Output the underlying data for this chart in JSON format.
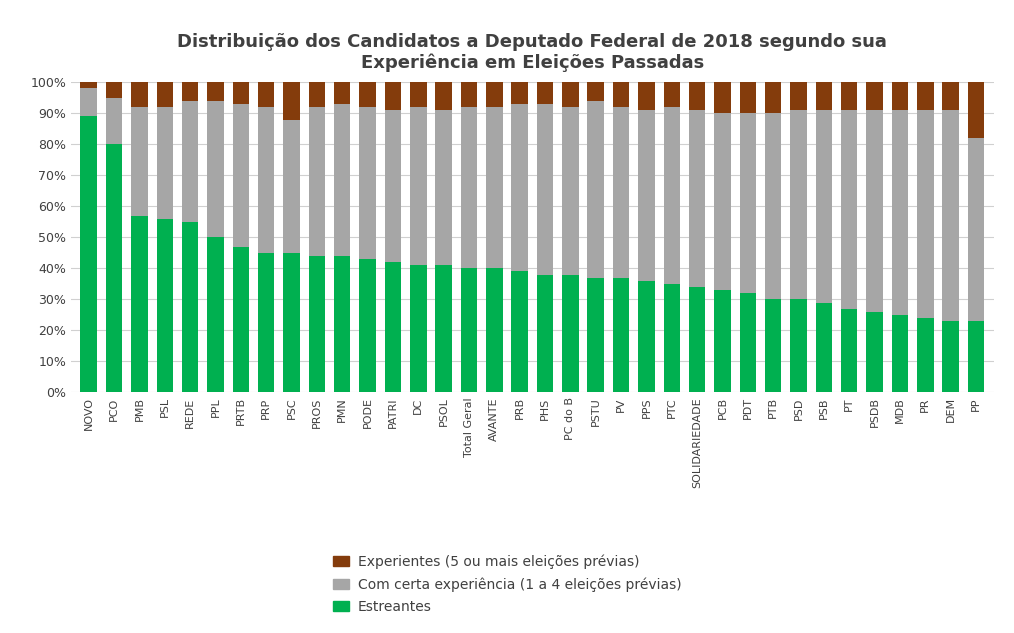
{
  "title": "Distribuição dos Candidatos a Deputado Federal de 2018 segundo sua\nExperiência em Eleições Passadas",
  "title_fontsize": 13,
  "categories": [
    "NOVO",
    "PCO",
    "PMB",
    "PSL",
    "REDE",
    "PPL",
    "PRTB",
    "PRP",
    "PSC",
    "PROS",
    "PMN",
    "PODE",
    "PATRI",
    "DC",
    "PSOL",
    "Total Geral",
    "AVANTE",
    "PRB",
    "PHS",
    "PC do B",
    "PSTU",
    "PV",
    "PPS",
    "PTC",
    "SOLIDARIEDADE",
    "PCB",
    "PDT",
    "PTB",
    "PSD",
    "PSB",
    "PT",
    "PSDB",
    "MDB",
    "PR",
    "DEM",
    "PP"
  ],
  "estreantes": [
    89,
    80,
    57,
    56,
    55,
    50,
    47,
    45,
    45,
    44,
    44,
    43,
    42,
    41,
    41,
    40,
    40,
    39,
    38,
    38,
    37,
    37,
    36,
    35,
    34,
    33,
    32,
    30,
    30,
    29,
    27,
    26,
    25,
    24,
    23,
    23
  ],
  "com_experiencia": [
    9,
    15,
    35,
    36,
    39,
    44,
    46,
    47,
    43,
    48,
    49,
    49,
    49,
    51,
    50,
    52,
    52,
    54,
    55,
    54,
    57,
    55,
    55,
    57,
    57,
    57,
    58,
    60,
    61,
    62,
    64,
    65,
    66,
    67,
    68,
    59
  ],
  "experientes": [
    2,
    5,
    8,
    8,
    6,
    6,
    7,
    8,
    12,
    8,
    7,
    8,
    9,
    8,
    9,
    8,
    8,
    7,
    7,
    8,
    6,
    8,
    9,
    8,
    9,
    10,
    10,
    10,
    9,
    9,
    9,
    9,
    9,
    9,
    9,
    18
  ],
  "color_estreantes": "#00b050",
  "color_com_experiencia": "#a6a6a6",
  "color_experientes": "#843c0c",
  "legend_labels": [
    "Experientes (5 ou mais eleições prévias)",
    "Com certa experiência (1 a 4 eleições prévias)",
    "Estreantes"
  ],
  "background_color": "#ffffff"
}
